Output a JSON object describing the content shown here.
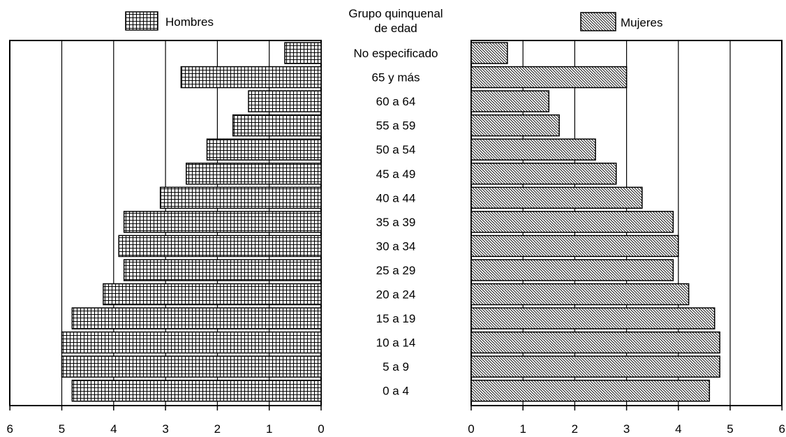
{
  "chart_data": {
    "type": "bar",
    "orientation": "horizontal",
    "layout": "population-pyramid",
    "center_header": [
      "Grupo quinquenal",
      "de edad"
    ],
    "categories": [
      "No especificado",
      "65 y más",
      "60 a 64",
      "55 a 59",
      "50 a 54",
      "45 a 49",
      "40 a 44",
      "35 a 39",
      "30 a 34",
      "25 a 29",
      "20 a 24",
      "15 a 19",
      "10 a 14",
      "5 a 9",
      "0 a 4"
    ],
    "series": [
      {
        "name": "Hombres",
        "side": "left",
        "pattern": "grid",
        "values": [
          0.7,
          2.7,
          1.4,
          1.7,
          2.2,
          2.6,
          3.1,
          3.8,
          3.9,
          3.8,
          4.2,
          4.8,
          5.0,
          5.0,
          4.8
        ]
      },
      {
        "name": "Mujeres",
        "side": "right",
        "pattern": "diagonal",
        "values": [
          0.7,
          3.0,
          1.5,
          1.7,
          2.4,
          2.8,
          3.3,
          3.9,
          4.0,
          3.9,
          4.2,
          4.7,
          4.8,
          4.8,
          4.6
        ]
      }
    ],
    "xlim": [
      0,
      6
    ],
    "x_ticks": [
      "0",
      "1",
      "2",
      "3",
      "4",
      "5",
      "6"
    ],
    "grid": true,
    "legend": "top",
    "colors": {
      "bar_fill": "#ffffff",
      "pattern": "#000000",
      "stroke": "#000000"
    }
  }
}
